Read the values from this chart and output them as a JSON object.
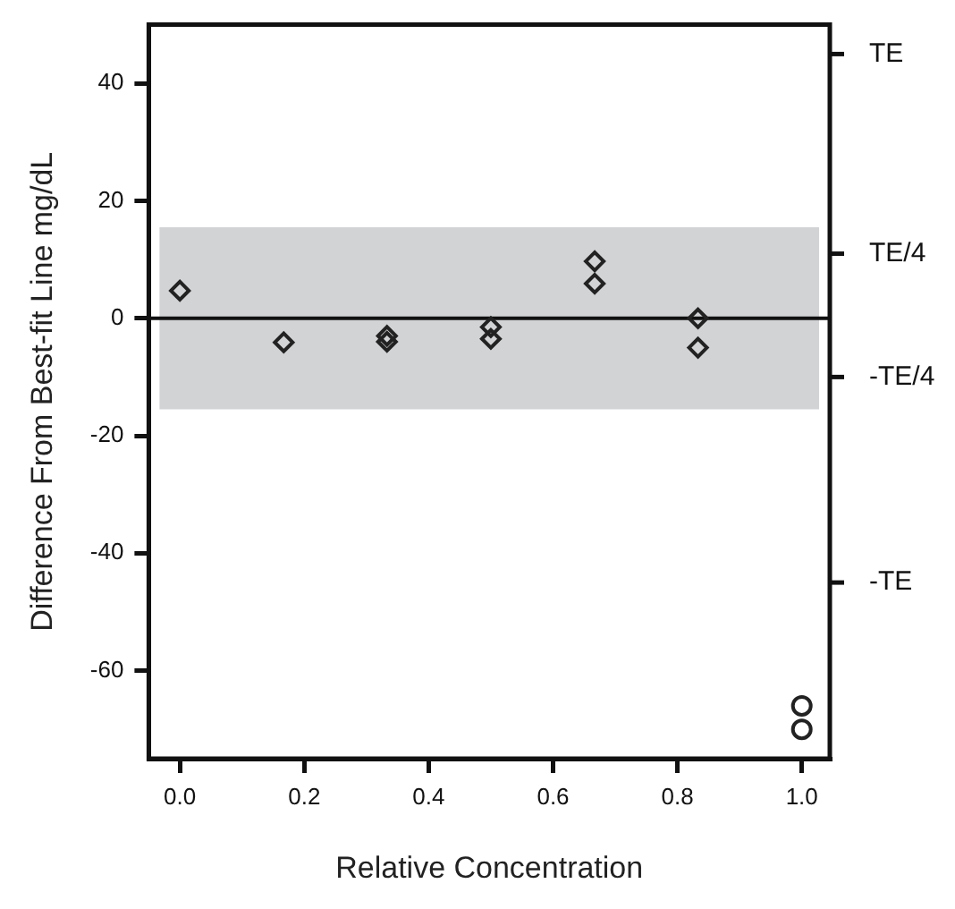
{
  "chart_data": {
    "type": "scatter",
    "xlabel": "Relative Concentration",
    "ylabel": "Difference From Best-fit Line mg/dL",
    "series": [
      {
        "marker": "diamond",
        "color": "#222222",
        "x": [
          0,
          0.167,
          0.333,
          0.333,
          0.5,
          0.5,
          0.667,
          0.667,
          0.833,
          0.833
        ],
        "values": [
          4.7,
          -4.1,
          -3,
          -4,
          -1.5,
          -3.5,
          9.7,
          5.9,
          0,
          -5
        ]
      },
      {
        "marker": "circle",
        "color": "#222222",
        "x": [
          1,
          1
        ],
        "values": [
          -66,
          -70
        ]
      }
    ],
    "xlim": [
      -0.05,
      1.045
    ],
    "xticks": [
      {
        "value": 0,
        "label": "0.0"
      },
      0.2,
      0.4,
      0.6,
      0.8,
      {
        "value": 1,
        "label": "1.0"
      }
    ],
    "ylim": [
      -75,
      50
    ],
    "yticks": [
      -60,
      -40,
      -20,
      0,
      20,
      40
    ],
    "ref_lines": [
      {
        "axis": "y",
        "value": 0,
        "color": "#111111"
      },
      {
        "axis": "y",
        "value": 45,
        "label": "TE",
        "color": "#111111"
      },
      {
        "axis": "y",
        "value": 11,
        "label": "TE/4",
        "color": "#111111"
      },
      {
        "axis": "y",
        "value": -10,
        "label": "-TE/4",
        "color": "#111111"
      },
      {
        "axis": "y",
        "value": -45,
        "label": "-TE",
        "color": "#111111"
      }
    ],
    "bands": [
      {
        "axis": "y",
        "from": -15.5,
        "to": 15.5,
        "color": "#d2d3d5"
      }
    ],
    "grid": false,
    "legend": false
  }
}
